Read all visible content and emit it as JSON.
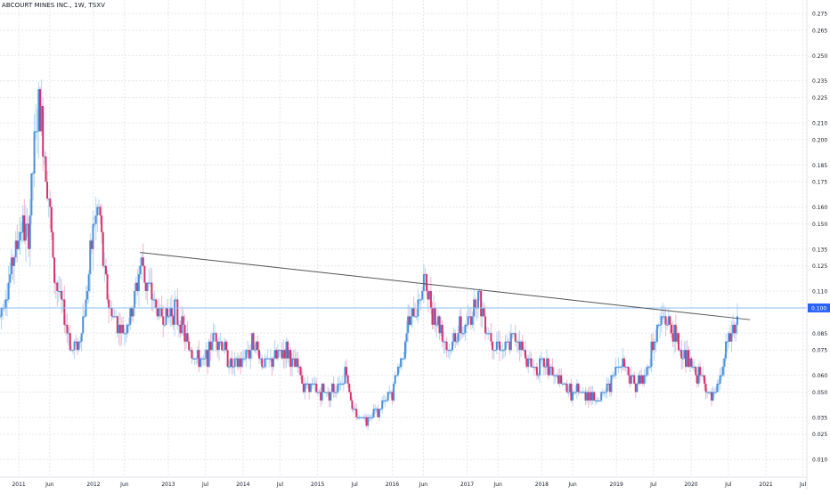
{
  "header": {
    "title": "ABCOURT MINES INC., 1W, TSXV"
  },
  "colors": {
    "up": "#4a90d9",
    "up_light": "#b7d5f2",
    "down": "#d6336c",
    "down_light": "#f3b6cb",
    "grid": "#e4e6eb",
    "hline": "#90bff0",
    "trend": "#555555",
    "price_tag": "#2962ff"
  },
  "chart_data": {
    "type": "candlestick",
    "title": "ABCOURT MINES INC., 1W, TSXV",
    "xlabel": "",
    "ylabel": "",
    "ylim": [
      0.0,
      0.283
    ],
    "xlim": [
      "2010-10-01",
      "2021-07-20"
    ],
    "grid": true,
    "y_ticks": [
      "0.010",
      "0.025",
      "0.035",
      "0.050",
      "0.060",
      "0.075",
      "0.085",
      "0.100",
      "0.110",
      "0.125",
      "0.135",
      "0.150",
      "0.160",
      "0.175",
      "0.185",
      "0.200",
      "0.210",
      "0.225",
      "0.235",
      "0.250",
      "0.265",
      "0.275"
    ],
    "x_ticks": [
      {
        "label": "2011",
        "date": "2011-01-01"
      },
      {
        "label": "Jun",
        "date": "2011-06-01"
      },
      {
        "label": "2012",
        "date": "2012-01-01"
      },
      {
        "label": "Jun",
        "date": "2012-06-01"
      },
      {
        "label": "2013",
        "date": "2013-01-01"
      },
      {
        "label": "Jul",
        "date": "2013-07-01"
      },
      {
        "label": "2014",
        "date": "2014-01-01"
      },
      {
        "label": "Jul",
        "date": "2014-07-01"
      },
      {
        "label": "2015",
        "date": "2015-01-01"
      },
      {
        "label": "Jul",
        "date": "2015-07-01"
      },
      {
        "label": "2016",
        "date": "2016-01-01"
      },
      {
        "label": "Jun",
        "date": "2016-06-01"
      },
      {
        "label": "2017",
        "date": "2017-01-01"
      },
      {
        "label": "Jun",
        "date": "2017-06-01"
      },
      {
        "label": "2018",
        "date": "2018-01-01"
      },
      {
        "label": "Jun",
        "date": "2018-06-01"
      },
      {
        "label": "2019",
        "date": "2019-01-01"
      },
      {
        "label": "Jul",
        "date": "2019-07-01"
      },
      {
        "label": "2020",
        "date": "2020-01-01"
      },
      {
        "label": "Jul",
        "date": "2020-07-01"
      },
      {
        "label": "2021",
        "date": "2021-01-01"
      },
      {
        "label": "Jul",
        "date": "2021-07-01"
      }
    ],
    "price_line": {
      "value": 0.1,
      "label": "0.100"
    },
    "trendline": {
      "start": [
        "2012-08-15",
        0.133
      ],
      "end": [
        "2020-10-15",
        0.093
      ]
    },
    "price_path": [
      [
        "2010-10-01",
        0.095
      ],
      [
        "2010-12-01",
        0.125
      ],
      [
        "2011-01-15",
        0.15
      ],
      [
        "2011-02-15",
        0.14
      ],
      [
        "2011-03-15",
        0.19
      ],
      [
        "2011-04-10",
        0.22
      ],
      [
        "2011-05-01",
        0.2
      ],
      [
        "2011-06-01",
        0.16
      ],
      [
        "2011-06-20",
        0.12
      ],
      [
        "2011-07-15",
        0.11
      ],
      [
        "2011-08-20",
        0.09
      ],
      [
        "2011-09-20",
        0.075
      ],
      [
        "2011-10-25",
        0.08
      ],
      [
        "2011-12-01",
        0.11
      ],
      [
        "2012-01-01",
        0.15
      ],
      [
        "2012-02-01",
        0.16
      ],
      [
        "2012-02-20",
        0.12
      ],
      [
        "2012-03-20",
        0.1
      ],
      [
        "2012-05-01",
        0.09
      ],
      [
        "2012-06-01",
        0.085
      ],
      [
        "2012-07-15",
        0.1
      ],
      [
        "2012-08-20",
        0.13
      ],
      [
        "2012-09-15",
        0.115
      ],
      [
        "2012-11-01",
        0.1
      ],
      [
        "2012-12-15",
        0.095
      ],
      [
        "2013-02-01",
        0.1
      ],
      [
        "2013-04-01",
        0.08
      ],
      [
        "2013-05-15",
        0.07
      ],
      [
        "2013-07-01",
        0.068
      ],
      [
        "2013-08-15",
        0.085
      ],
      [
        "2013-10-01",
        0.075
      ],
      [
        "2013-11-15",
        0.065
      ],
      [
        "2014-01-01",
        0.07
      ],
      [
        "2014-03-01",
        0.08
      ],
      [
        "2014-04-15",
        0.065
      ],
      [
        "2014-06-01",
        0.07
      ],
      [
        "2014-08-01",
        0.075
      ],
      [
        "2014-09-15",
        0.065
      ],
      [
        "2014-11-01",
        0.055
      ],
      [
        "2015-01-01",
        0.05
      ],
      [
        "2015-03-01",
        0.05
      ],
      [
        "2015-04-15",
        0.055
      ],
      [
        "2015-05-20",
        0.062
      ],
      [
        "2015-06-20",
        0.04
      ],
      [
        "2015-07-20",
        0.035
      ],
      [
        "2015-09-01",
        0.035
      ],
      [
        "2015-11-01",
        0.04
      ],
      [
        "2016-01-01",
        0.05
      ],
      [
        "2016-02-15",
        0.07
      ],
      [
        "2016-03-20",
        0.09
      ],
      [
        "2016-05-01",
        0.1
      ],
      [
        "2016-06-01",
        0.115
      ],
      [
        "2016-07-15",
        0.1
      ],
      [
        "2016-08-20",
        0.09
      ],
      [
        "2016-10-01",
        0.075
      ],
      [
        "2016-11-15",
        0.085
      ],
      [
        "2017-01-01",
        0.09
      ],
      [
        "2017-02-01",
        0.1
      ],
      [
        "2017-02-20",
        0.11
      ],
      [
        "2017-04-01",
        0.09
      ],
      [
        "2017-05-15",
        0.08
      ],
      [
        "2017-07-01",
        0.075
      ],
      [
        "2017-09-01",
        0.085
      ],
      [
        "2017-10-15",
        0.07
      ],
      [
        "2017-12-01",
        0.065
      ],
      [
        "2018-02-01",
        0.065
      ],
      [
        "2018-04-01",
        0.055
      ],
      [
        "2018-06-01",
        0.05
      ],
      [
        "2018-08-01",
        0.05
      ],
      [
        "2018-10-15",
        0.045
      ],
      [
        "2018-12-15",
        0.06
      ],
      [
        "2019-02-01",
        0.07
      ],
      [
        "2019-04-01",
        0.055
      ],
      [
        "2019-05-20",
        0.058
      ],
      [
        "2019-07-01",
        0.08
      ],
      [
        "2019-08-15",
        0.095
      ],
      [
        "2019-10-01",
        0.085
      ],
      [
        "2019-11-15",
        0.075
      ],
      [
        "2020-01-01",
        0.065
      ],
      [
        "2020-02-01",
        0.06
      ],
      [
        "2020-03-01",
        0.06
      ],
      [
        "2020-04-01",
        0.045
      ],
      [
        "2020-05-01",
        0.05
      ],
      [
        "2020-06-01",
        0.065
      ],
      [
        "2020-07-01",
        0.08
      ],
      [
        "2020-08-01",
        0.088
      ],
      [
        "2020-08-20",
        0.098
      ]
    ]
  }
}
